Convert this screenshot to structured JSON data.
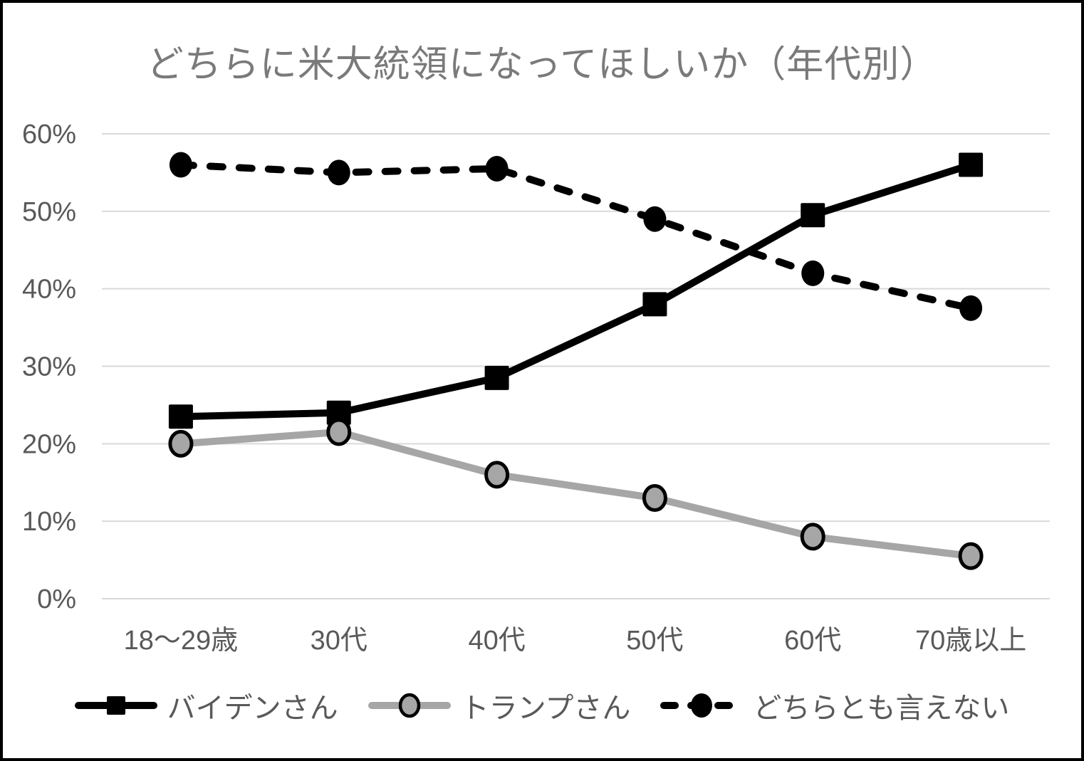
{
  "chart_data": {
    "type": "line",
    "title": "どちらに米大統領になってほしいか（年代別）",
    "categories": [
      "18〜29歳",
      "30代",
      "40代",
      "50代",
      "60代",
      "70歳以上"
    ],
    "series": [
      {
        "name": "バイデンさん",
        "values": [
          23.5,
          24,
          28.5,
          38,
          49.5,
          56
        ],
        "color": "#000000",
        "line": "solid",
        "marker": "square",
        "marker_fill": "#000000"
      },
      {
        "name": "トランプさん",
        "values": [
          20,
          21.5,
          16,
          13,
          8,
          5.5
        ],
        "color": "#a6a6a6",
        "line": "solid",
        "marker": "circle",
        "marker_fill": "#a6a6a6",
        "marker_stroke": "#000000"
      },
      {
        "name": "どちらとも言えない",
        "values": [
          56,
          55,
          55.5,
          49,
          42,
          37.5
        ],
        "color": "#000000",
        "line": "dashed",
        "marker": "circle",
        "marker_fill": "#000000"
      }
    ],
    "ylim": [
      0,
      60
    ],
    "yticks": [
      {
        "value": 0,
        "label": "0%"
      },
      {
        "value": 10,
        "label": "10%"
      },
      {
        "value": 20,
        "label": "20%"
      },
      {
        "value": 30,
        "label": "30%"
      },
      {
        "value": 40,
        "label": "40%"
      },
      {
        "value": 50,
        "label": "50%"
      },
      {
        "value": 60,
        "label": "60%"
      }
    ],
    "grid": true,
    "legend_position": "bottom"
  },
  "colors": {
    "series_black": "#000000",
    "series_gray": "#a6a6a6",
    "gridline": "#d9d9d9",
    "title_text": "#7a7a7a",
    "axis_text": "#595959",
    "legend_text": "#595959",
    "background": "#ffffff",
    "frame_border": "#000000"
  }
}
